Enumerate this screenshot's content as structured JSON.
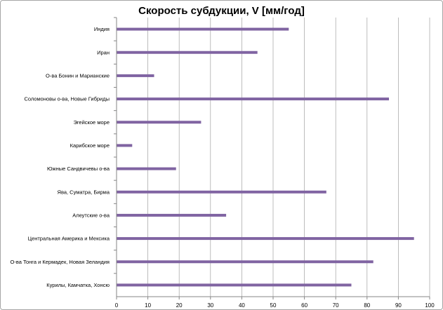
{
  "chart_data": {
    "type": "bar",
    "orientation": "horizontal",
    "title": "Скорость субдукции, V [мм/год]",
    "xlabel": "",
    "ylabel": "",
    "xlim": [
      0,
      100
    ],
    "xticks": [
      "0",
      "10",
      "20",
      "30",
      "40",
      "50",
      "60",
      "70",
      "80",
      "90",
      "100"
    ],
    "grid": "vertical",
    "legend": "none",
    "bar_color": "#8064a2",
    "categories": [
      "Индия",
      "Иран",
      "О-ва Бонин и Марианские",
      "Соломоновы о-ва, Новые Гибриды",
      "Эгейское море",
      "Карибское море",
      "Южные Сандвичевы о-ва",
      "Ява, Суматра, Бирма",
      "Алеутские о-ва",
      "Центральная Америка и Мексика",
      "О-ва Тонга и Кермадек, Новая Зеландия",
      "Курилы, Камчатка, Хонсю"
    ],
    "values": [
      55,
      45,
      12,
      87,
      27,
      5,
      19,
      67,
      35,
      95,
      82,
      75
    ]
  }
}
